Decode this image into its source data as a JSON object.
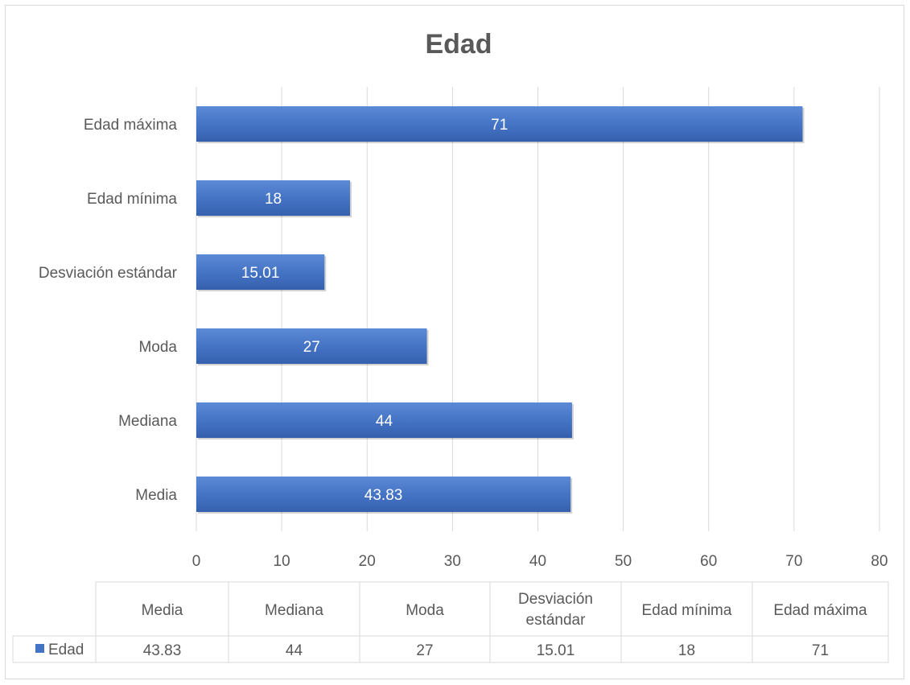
{
  "chart_data": {
    "type": "bar",
    "orientation": "horizontal",
    "title": "Edad",
    "categories": [
      "Media",
      "Mediana",
      "Moda",
      "Desviación estándar",
      "Edad mínima",
      "Edad máxima"
    ],
    "table_headers": [
      [
        "Media"
      ],
      [
        "Mediana"
      ],
      [
        "Moda"
      ],
      [
        "Desviación",
        "estándar"
      ],
      [
        "Edad mínima"
      ],
      [
        "Edad máxima"
      ]
    ],
    "series": [
      {
        "name": "Edad",
        "values": [
          43.83,
          44,
          27,
          15.01,
          18,
          71
        ],
        "labels": [
          "43.83",
          "44",
          "27",
          "15.01",
          "18",
          "71"
        ],
        "color": "#4472c4"
      }
    ],
    "xlim": [
      0,
      80
    ],
    "ticks": [
      0,
      10,
      20,
      30,
      40,
      50,
      60,
      70,
      80
    ],
    "grid": true,
    "legend": "data-table",
    "data_table": true
  }
}
